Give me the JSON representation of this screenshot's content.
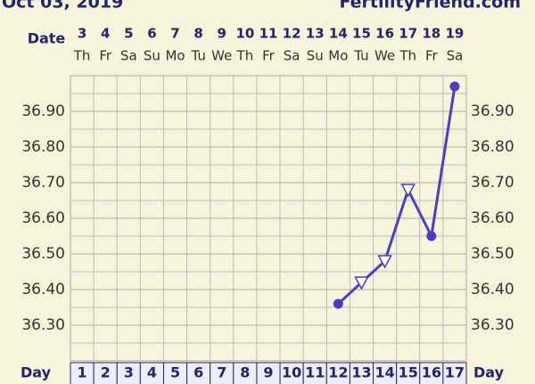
{
  "chart_data": {
    "type": "line",
    "title": "Oct 03, 2019",
    "source": "FertilityFriend.com",
    "date_label": "Date",
    "day_label": "Day",
    "dates": [
      "3",
      "4",
      "5",
      "6",
      "7",
      "8",
      "9",
      "10",
      "11",
      "12",
      "13",
      "14",
      "15",
      "16",
      "17",
      "18",
      "19"
    ],
    "weekdays": [
      "Th",
      "Fr",
      "Sa",
      "Su",
      "Mo",
      "Tu",
      "We",
      "Th",
      "Fr",
      "Sa",
      "Su",
      "Mo",
      "Tu",
      "We",
      "Th",
      "Fr",
      "Sa"
    ],
    "categories": [
      "1",
      "2",
      "3",
      "4",
      "5",
      "6",
      "7",
      "8",
      "9",
      "10",
      "11",
      "12",
      "13",
      "14",
      "15",
      "16",
      "17"
    ],
    "series": [
      {
        "color": "#4a3fc4",
        "values": [
          null,
          null,
          null,
          null,
          null,
          null,
          null,
          null,
          null,
          null,
          null,
          36.36,
          36.42,
          36.48,
          36.68,
          36.55,
          36.97
        ],
        "markers": [
          null,
          null,
          null,
          null,
          null,
          null,
          null,
          null,
          null,
          null,
          null,
          "circle",
          "triangle",
          "triangle",
          "triangle",
          "circle",
          "circle"
        ]
      }
    ],
    "ylim": [
      36.2,
      37.0
    ],
    "yticks": [
      {
        "value": 36.3,
        "label": "36.30"
      },
      {
        "value": 36.4,
        "label": "36.40"
      },
      {
        "value": 36.5,
        "label": "36.50"
      },
      {
        "value": 36.6,
        "label": "36.60"
      },
      {
        "value": 36.7,
        "label": "36.70"
      },
      {
        "value": 36.8,
        "label": "36.80"
      },
      {
        "value": 36.9,
        "label": "36.90"
      }
    ],
    "minor_step": 0.05,
    "grid": true
  }
}
